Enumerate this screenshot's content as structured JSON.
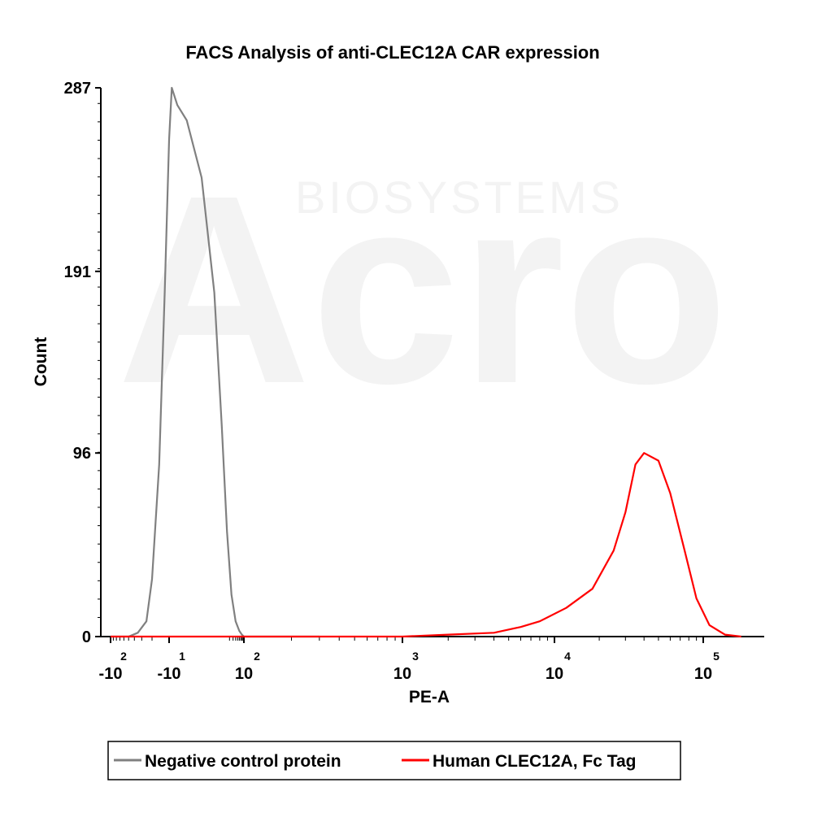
{
  "chart_data": {
    "type": "line",
    "title": "FACS Analysis of anti-CLEC12A CAR expression",
    "xlabel": "PE-A",
    "ylabel": "Count",
    "ylim": [
      0,
      287
    ],
    "yticks": [
      "0",
      "96",
      "191",
      "287"
    ],
    "xscale": "biexponential (log)",
    "xticks": [
      {
        "base": "-10",
        "exp": "2",
        "value": -100
      },
      {
        "base": "-10",
        "exp": "1",
        "value": -10
      },
      {
        "base": "10",
        "exp": "2",
        "value": 100
      },
      {
        "base": "10",
        "exp": "3",
        "value": 1000
      },
      {
        "base": "10",
        "exp": "4",
        "value": 10000
      },
      {
        "base": "10",
        "exp": "5",
        "value": 100000
      }
    ],
    "legend_position": "bottom",
    "series": [
      {
        "name": "Negative control protein",
        "color": "#808080",
        "x": [
          -100,
          -50,
          -35,
          -25,
          -20,
          -15,
          -12,
          -10,
          -8,
          -5,
          -2,
          0,
          3,
          8,
          15,
          25,
          40,
          60,
          80,
          100,
          150,
          300
        ],
        "y": [
          0,
          0,
          2,
          8,
          30,
          90,
          180,
          260,
          287,
          278,
          270,
          240,
          180,
          110,
          55,
          22,
          8,
          3,
          1,
          0,
          0,
          0
        ]
      },
      {
        "name": "Human CLEC12A, Fc Tag",
        "color": "#ff0000",
        "x": [
          -100,
          100,
          1000,
          2000,
          4000,
          6000,
          8000,
          12000,
          18000,
          25000,
          30000,
          35000,
          40000,
          50000,
          60000,
          75000,
          90000,
          110000,
          140000,
          180000
        ],
        "y": [
          0,
          0,
          0,
          1,
          2,
          5,
          8,
          15,
          25,
          45,
          65,
          90,
          96,
          92,
          75,
          45,
          20,
          6,
          1,
          0
        ]
      }
    ]
  },
  "watermark": {
    "brand": "Acro",
    "subtitle": "BIOSYSTEMS"
  }
}
